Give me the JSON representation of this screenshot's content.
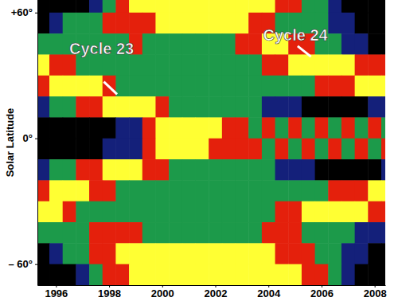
{
  "chart_data": {
    "type": "heatmap",
    "y_label": "Solar Latitude",
    "annotations": [
      "Cycle 23",
      "Cycle 24"
    ],
    "x": [
      1995.5,
      1996,
      1996.5,
      1997,
      1997.5,
      1998,
      1998.5,
      1999,
      1999.5,
      2000,
      2000.5,
      2001,
      2001.5,
      2002,
      2002.5,
      2003,
      2003.5,
      2004,
      2004.5,
      2005,
      2005.5,
      2006,
      2006.5,
      2007,
      2007.5,
      2008,
      2008.5
    ],
    "y": [
      65,
      55,
      45,
      35,
      25,
      15,
      5,
      -5,
      -15,
      -25,
      -35,
      -45,
      -55,
      -65
    ],
    "values": [
      [
        0,
        0,
        0,
        0,
        1,
        2,
        3,
        4,
        4,
        4,
        4,
        4,
        4,
        4,
        4,
        4,
        4,
        4,
        3,
        3,
        2,
        2,
        1,
        0,
        0,
        0,
        0
      ],
      [
        0,
        1,
        2,
        2,
        2,
        3,
        3,
        3,
        3,
        4,
        4,
        4,
        4,
        4,
        4,
        4,
        3,
        3,
        2,
        2,
        2,
        2,
        1,
        1,
        0,
        0,
        0
      ],
      [
        2,
        2,
        2,
        2,
        2,
        2,
        2,
        3,
        2,
        2,
        2,
        2,
        2,
        2,
        2,
        3,
        3,
        4,
        4,
        3,
        3,
        2,
        2,
        1,
        1,
        0,
        0
      ],
      [
        4,
        3,
        3,
        2,
        2,
        2,
        2,
        2,
        2,
        2,
        2,
        2,
        2,
        2,
        2,
        2,
        2,
        3,
        3,
        4,
        4,
        4,
        4,
        4,
        3,
        3,
        3
      ],
      [
        3,
        4,
        4,
        4,
        4,
        3,
        2,
        2,
        2,
        2,
        2,
        2,
        2,
        2,
        2,
        2,
        2,
        2,
        2,
        2,
        2,
        3,
        3,
        3,
        4,
        4,
        4
      ],
      [
        1,
        2,
        2,
        3,
        3,
        4,
        4,
        4,
        4,
        3,
        2,
        2,
        2,
        2,
        2,
        2,
        2,
        1,
        1,
        1,
        0,
        0,
        0,
        0,
        0,
        1,
        1
      ],
      [
        0,
        0,
        0,
        0,
        0,
        0,
        1,
        1,
        3,
        4,
        4,
        4,
        4,
        4,
        3,
        3,
        2,
        3,
        2,
        3,
        2,
        3,
        2,
        3,
        2,
        3,
        2
      ],
      [
        0,
        0,
        0,
        0,
        0,
        1,
        1,
        1,
        3,
        4,
        4,
        4,
        4,
        3,
        3,
        3,
        3,
        2,
        3,
        2,
        3,
        2,
        3,
        2,
        3,
        2,
        3
      ],
      [
        1,
        2,
        2,
        3,
        3,
        4,
        4,
        4,
        3,
        3,
        2,
        2,
        2,
        2,
        2,
        2,
        2,
        2,
        1,
        1,
        1,
        0,
        0,
        0,
        0,
        0,
        1
      ],
      [
        3,
        4,
        4,
        4,
        3,
        3,
        2,
        2,
        2,
        2,
        2,
        2,
        2,
        2,
        2,
        2,
        2,
        2,
        2,
        2,
        2,
        2,
        3,
        3,
        3,
        4,
        4
      ],
      [
        4,
        4,
        3,
        2,
        2,
        2,
        2,
        2,
        2,
        2,
        2,
        2,
        2,
        2,
        2,
        2,
        2,
        2,
        3,
        3,
        4,
        4,
        4,
        4,
        4,
        3,
        3
      ],
      [
        2,
        2,
        2,
        2,
        3,
        3,
        3,
        3,
        2,
        2,
        2,
        2,
        2,
        2,
        2,
        2,
        2,
        3,
        3,
        3,
        2,
        2,
        2,
        2,
        1,
        1,
        1
      ],
      [
        0,
        1,
        2,
        2,
        3,
        3,
        4,
        4,
        4,
        4,
        4,
        4,
        4,
        4,
        4,
        4,
        4,
        4,
        3,
        3,
        3,
        2,
        2,
        1,
        1,
        0,
        0
      ],
      [
        0,
        0,
        0,
        1,
        2,
        3,
        3,
        4,
        4,
        4,
        4,
        4,
        4,
        4,
        4,
        4,
        4,
        4,
        4,
        4,
        3,
        3,
        2,
        1,
        0,
        0,
        0
      ]
    ],
    "xlim": [
      1995.3,
      2008.4
    ],
    "ylim": [
      -70,
      66
    ],
    "xticks": [
      1996,
      1998,
      2000,
      2002,
      2004,
      2006,
      2008
    ],
    "yticks": [
      {
        "value": 60,
        "label": "+60°"
      },
      {
        "value": 0,
        "label": "0°"
      },
      {
        "value": -60,
        "label": "– 60°"
      }
    ],
    "grid": false
  }
}
